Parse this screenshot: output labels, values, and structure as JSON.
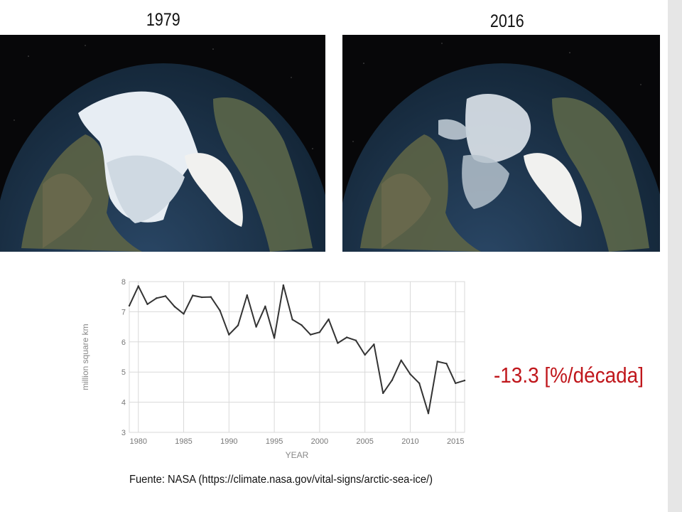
{
  "images": {
    "left_year": "1979",
    "right_year": "2016"
  },
  "trend_label": "-13.3 [%/década]",
  "source_text": "Fuente: NASA (https://climate.nasa.gov/vital-signs/arctic-sea-ice/)",
  "colors": {
    "trend": "#c0171c",
    "line": "#333333",
    "grid": "#d9d9d9",
    "axis_text": "#777777"
  },
  "chart_data": {
    "type": "line",
    "title": "",
    "xlabel": "YEAR",
    "ylabel": "million square km",
    "xlim": [
      1979,
      2016
    ],
    "ylim": [
      3,
      8
    ],
    "grid": true,
    "xticks": [
      1980,
      1985,
      1990,
      1995,
      2000,
      2005,
      2010,
      2015
    ],
    "yticks": [
      3,
      4,
      5,
      6,
      7,
      8
    ],
    "x": [
      1979,
      1980,
      1981,
      1982,
      1983,
      1984,
      1985,
      1986,
      1987,
      1988,
      1989,
      1990,
      1991,
      1992,
      1993,
      1994,
      1995,
      1996,
      1997,
      1998,
      1999,
      2000,
      2001,
      2002,
      2003,
      2004,
      2005,
      2006,
      2007,
      2008,
      2009,
      2010,
      2011,
      2012,
      2013,
      2014,
      2015,
      2016
    ],
    "values": [
      7.2,
      7.85,
      7.25,
      7.45,
      7.52,
      7.17,
      6.93,
      7.54,
      7.48,
      7.49,
      7.04,
      6.24,
      6.55,
      7.55,
      6.5,
      7.18,
      6.13,
      7.88,
      6.74,
      6.56,
      6.24,
      6.32,
      6.75,
      5.96,
      6.15,
      6.05,
      5.57,
      5.92,
      4.3,
      4.73,
      5.39,
      4.93,
      4.63,
      3.63,
      5.35,
      5.28,
      4.63,
      4.72
    ]
  }
}
